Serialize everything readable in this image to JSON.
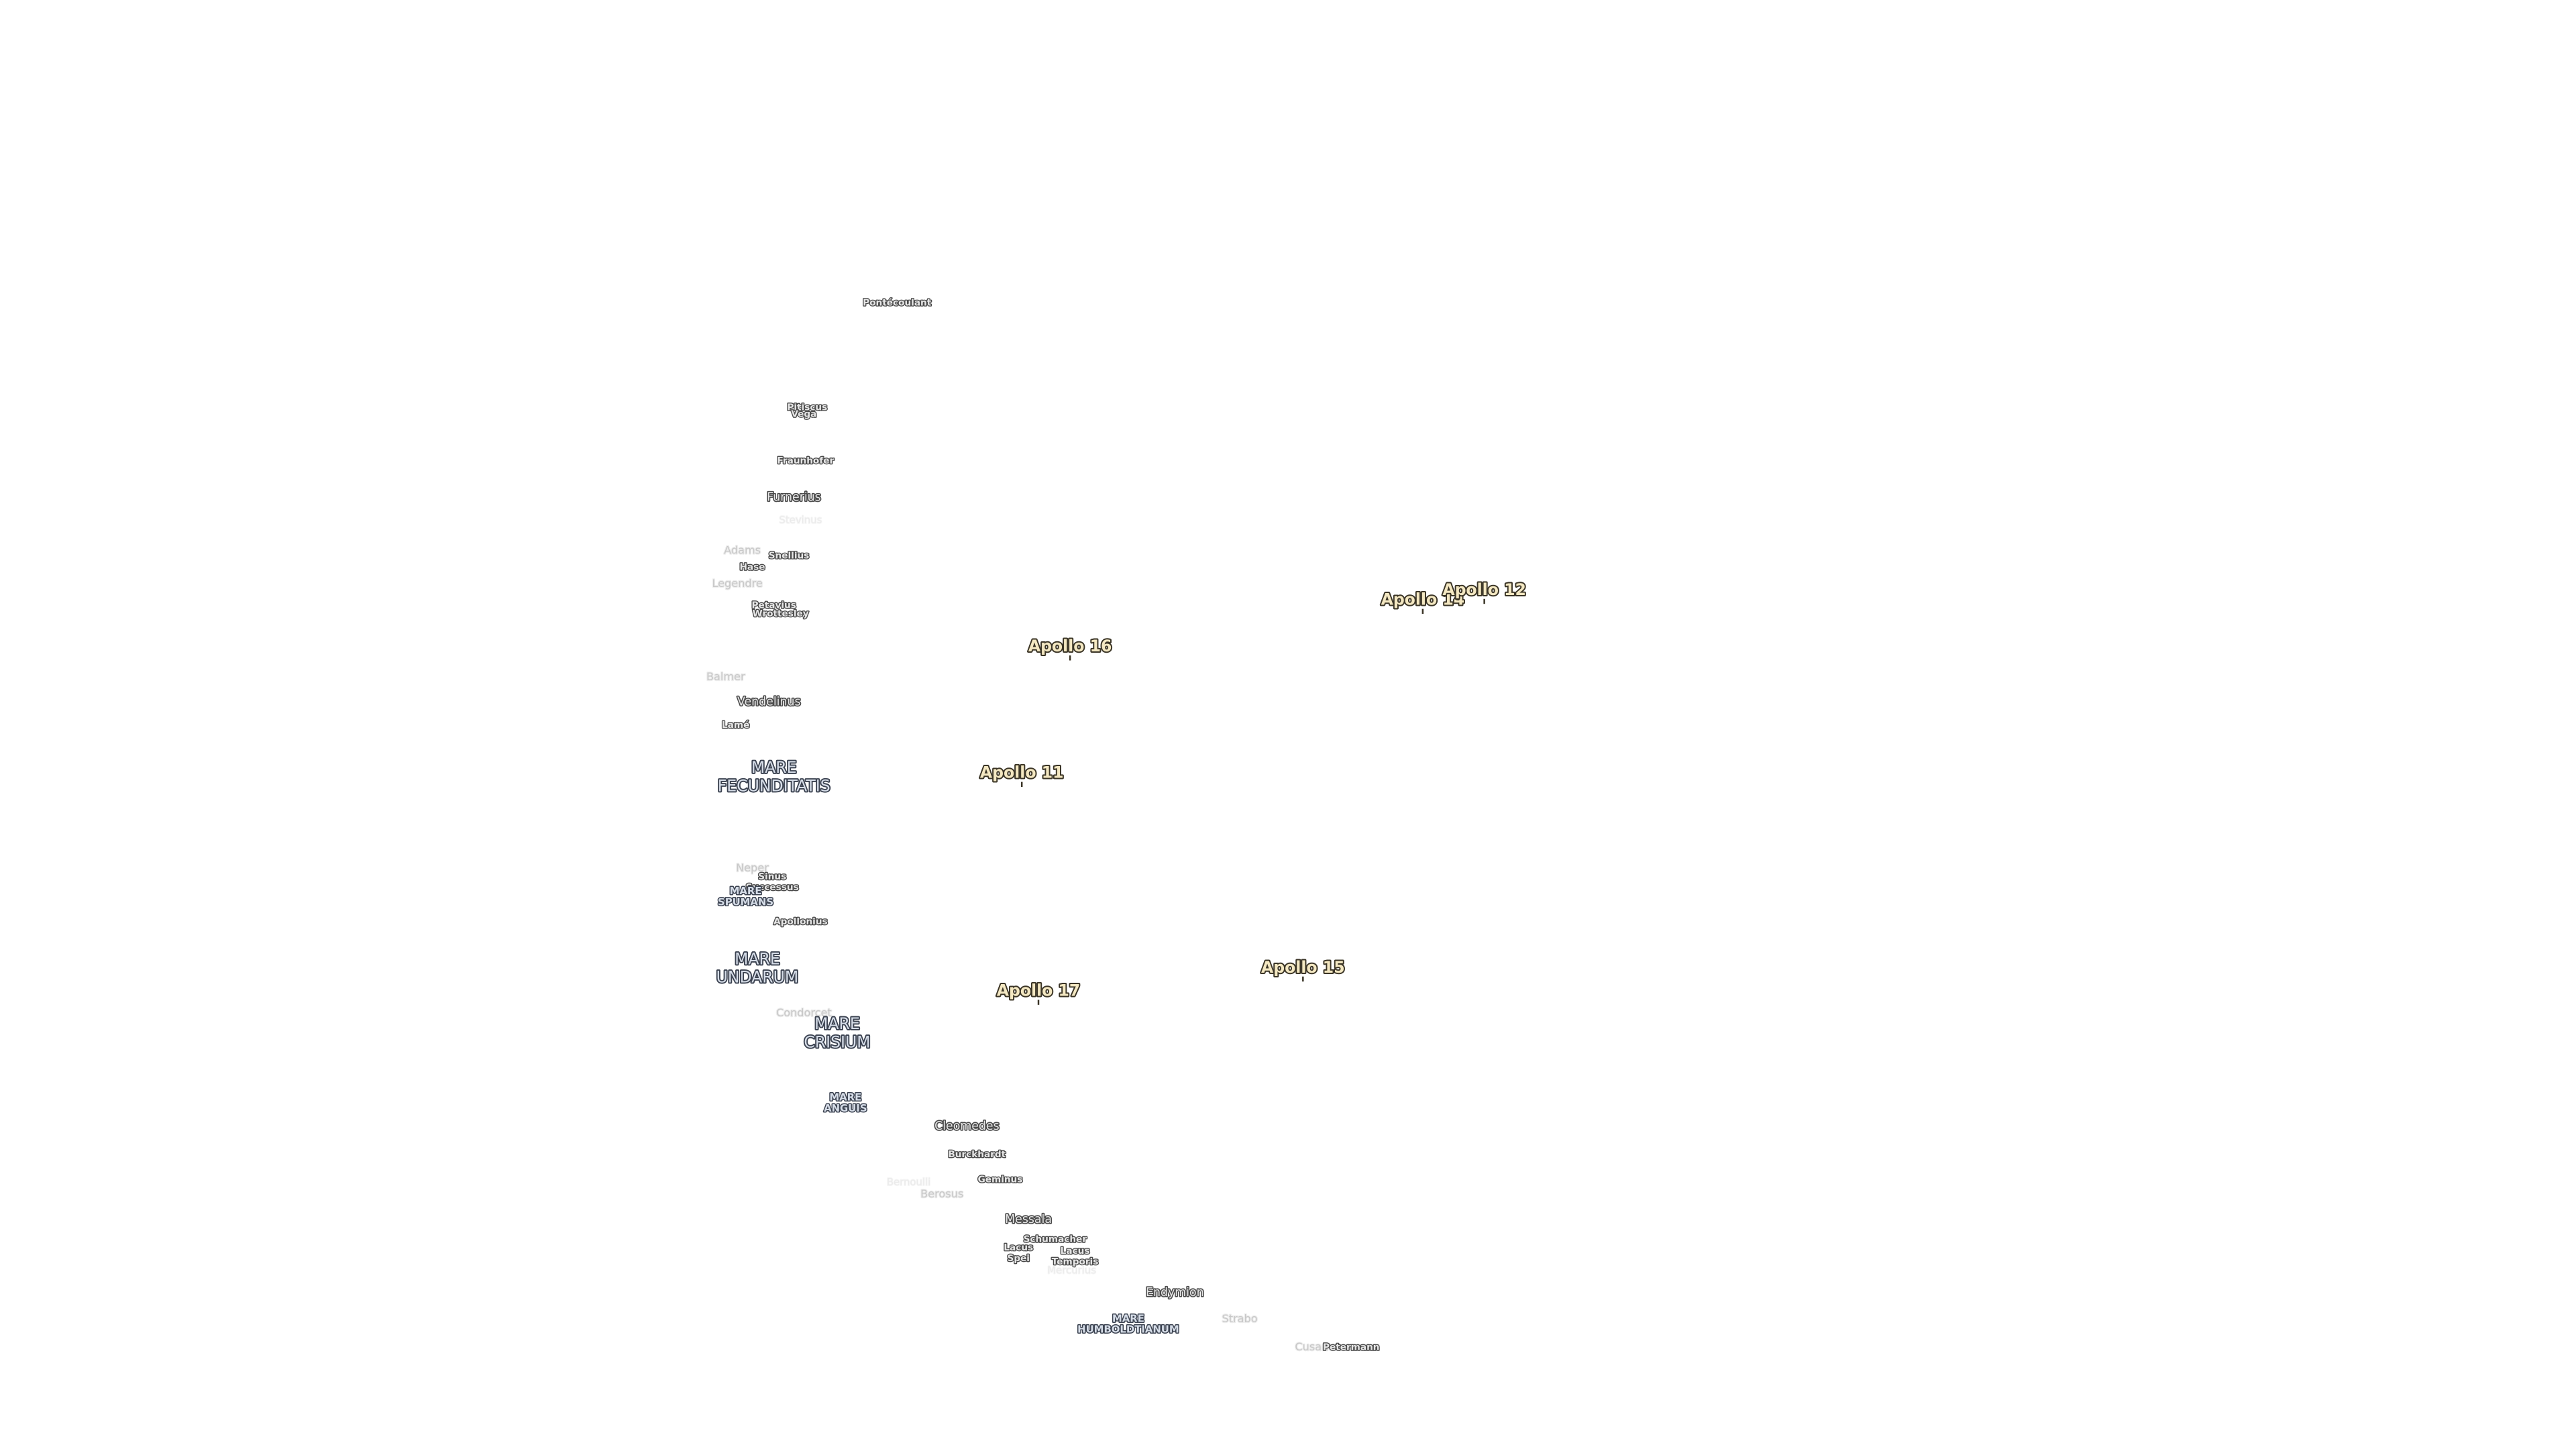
{
  "labels": [
    {
      "lines": [
        "Pontécoulant"
      ]
    },
    {
      "lines": [
        "Pitiscus"
      ]
    },
    {
      "lines": [
        "Vega"
      ]
    },
    {
      "lines": [
        "Fraunhofer"
      ]
    },
    {
      "lines": [
        "Furnerius"
      ]
    },
    {
      "lines": [
        "Stevinus"
      ]
    },
    {
      "lines": [
        "Adams"
      ]
    },
    {
      "lines": [
        "Snellius"
      ]
    },
    {
      "lines": [
        "Hase"
      ]
    },
    {
      "lines": [
        "Legendre"
      ]
    },
    {
      "lines": [
        "Petavius"
      ]
    },
    {
      "lines": [
        "Wrottesley"
      ]
    },
    {
      "lines": [
        "Balmer"
      ]
    },
    {
      "lines": [
        "Vendelinus"
      ]
    },
    {
      "lines": [
        "Lamé"
      ]
    },
    {
      "lines": [
        "MARE",
        "FECUNDITATIS"
      ]
    },
    {
      "lines": [
        "Apollo 16"
      ]
    },
    {
      "lines": [
        "Apollo 14"
      ]
    },
    {
      "lines": [
        "Apollo 12"
      ]
    },
    {
      "lines": [
        "Apollo 11"
      ]
    },
    {
      "lines": [
        "Apollo 15"
      ]
    },
    {
      "lines": [
        "Apollo 17"
      ]
    },
    {
      "lines": [
        "Neper"
      ]
    },
    {
      "lines": [
        "Sinus",
        "Successus"
      ]
    },
    {
      "lines": [
        "MARE",
        "SPUMANS"
      ]
    },
    {
      "lines": [
        "Apollonius"
      ]
    },
    {
      "lines": [
        "MARE",
        "UNDARUM"
      ]
    },
    {
      "lines": [
        "Condorcet"
      ]
    },
    {
      "lines": [
        "MARE",
        "CRISIUM"
      ]
    },
    {
      "lines": [
        "MARE",
        "ANGUIS"
      ]
    },
    {
      "lines": [
        "Cleomedes"
      ]
    },
    {
      "lines": [
        "Burckhardt"
      ]
    },
    {
      "lines": [
        "Geminus"
      ]
    },
    {
      "lines": [
        "Bernoulli"
      ]
    },
    {
      "lines": [
        "Berosus"
      ]
    },
    {
      "lines": [
        "Messala"
      ]
    },
    {
      "lines": [
        "Schumacher"
      ]
    },
    {
      "lines": [
        "Lacus",
        "Spei"
      ]
    },
    {
      "lines": [
        "Lacus",
        "Temporis"
      ]
    },
    {
      "lines": [
        "Mercurius"
      ]
    },
    {
      "lines": [
        "Endymion"
      ]
    },
    {
      "lines": [
        "MARE",
        "HUMBOLDTIANUM"
      ]
    },
    {
      "lines": [
        "Strabo"
      ]
    },
    {
      "lines": [
        "Cusanus"
      ]
    },
    {
      "lines": [
        "Petermann"
      ]
    }
  ]
}
